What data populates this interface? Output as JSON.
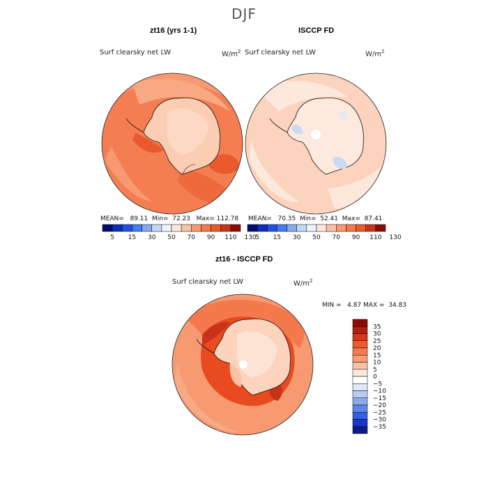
{
  "season": "DJF",
  "panels": [
    {
      "title": "zt16 (yrs 1-1)",
      "variable": "Surf clearsky net LW",
      "units": "W/m",
      "units_exp": "2",
      "mean_label": "MEAN=",
      "mean": "89.11",
      "min_label": "Min=",
      "min": "72.23",
      "max_label": "Max=",
      "max": "112.78"
    },
    {
      "title": "ISCCP FD",
      "variable": "Surf clearsky net LW",
      "units": "W/m",
      "units_exp": "2",
      "mean_label": "MEAN=",
      "mean": "70.35",
      "min_label": "Min=",
      "min": "52.41",
      "max_label": "Max=",
      "max": "87.41"
    },
    {
      "title": "zt16 - ISCCP FD",
      "variable": "Surf clearsky net LW",
      "units": "W/m",
      "units_exp": "2",
      "min_label": "MIN =",
      "min": "4.87",
      "max_label": "MAX =",
      "max": "34.83"
    }
  ],
  "chart_data": [
    {
      "type": "heatmap",
      "title": "zt16 (yrs 1-1)",
      "projection": "south polar stereographic",
      "variable": "Surf clearsky net LW",
      "units": "W/m^2",
      "stats": {
        "mean": 89.11,
        "min": 72.23,
        "max": 112.78
      },
      "colorbar": {
        "levels": [
          5,
          15,
          30,
          50,
          70,
          90,
          110,
          130
        ],
        "tick_labels": [
          "5",
          "15",
          "30",
          "50",
          "70",
          "90",
          "110",
          "130"
        ],
        "colors": [
          "#000d6e",
          "#0b2db8",
          "#2450e0",
          "#4a7bef",
          "#86aaf0",
          "#c2d6f5",
          "#eef3fb",
          "#fde8dc",
          "#fbc2a5",
          "#f79a72",
          "#f47a4d",
          "#ea5a2e",
          "#c9321a",
          "#8a0b06"
        ]
      }
    },
    {
      "type": "heatmap",
      "title": "ISCCP FD",
      "projection": "south polar stereographic",
      "variable": "Surf clearsky net LW",
      "units": "W/m^2",
      "stats": {
        "mean": 70.35,
        "min": 52.41,
        "max": 87.41
      },
      "colorbar": {
        "levels": [
          5,
          15,
          30,
          50,
          70,
          90,
          110,
          130
        ],
        "tick_labels": [
          "5",
          "15",
          "30",
          "50",
          "70",
          "90",
          "110",
          "130"
        ],
        "colors": [
          "#000d6e",
          "#0b2db8",
          "#2450e0",
          "#4a7bef",
          "#86aaf0",
          "#c2d6f5",
          "#eef3fb",
          "#fde8dc",
          "#fbc2a5",
          "#f79a72",
          "#f47a4d",
          "#ea5a2e",
          "#c9321a",
          "#8a0b06"
        ]
      }
    },
    {
      "type": "heatmap",
      "title": "zt16 - ISCCP FD",
      "projection": "south polar stereographic",
      "variable": "Surf clearsky net LW",
      "units": "W/m^2",
      "stats": {
        "min": 4.87,
        "max": 34.83
      },
      "colorbar": {
        "levels": [
          35,
          30,
          25,
          20,
          15,
          10,
          5,
          0,
          -5,
          -10,
          -15,
          -20,
          -25,
          -30,
          -35
        ],
        "tick_labels": [
          "35",
          "30",
          "25",
          "20",
          "15",
          "10",
          "5",
          "0",
          "−5",
          "−10",
          "−15",
          "−20",
          "−25",
          "−30",
          "−35"
        ],
        "colors": [
          "#8a0b06",
          "#b3200f",
          "#d8381a",
          "#ef5a2a",
          "#f47b4c",
          "#f89c76",
          "#fbc3a6",
          "#fde7d9",
          "#ffffff",
          "#dfe8f7",
          "#b8cdf1",
          "#8aaaee",
          "#5f86ea",
          "#3460e0",
          "#1638c4",
          "#0a1c8a"
        ]
      }
    }
  ]
}
